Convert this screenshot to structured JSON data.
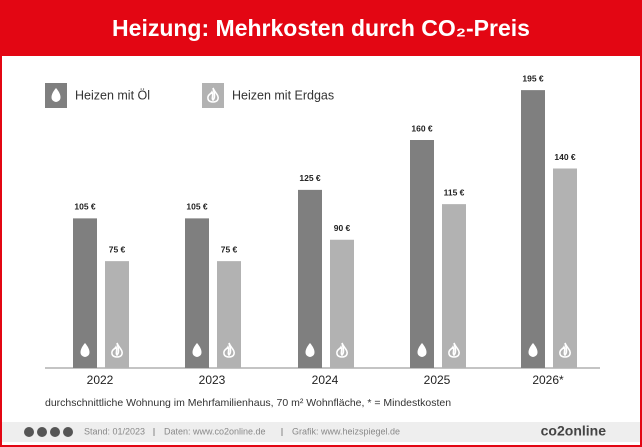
{
  "chart_data": {
    "type": "bar",
    "title": "Heizung: Mehrkosten durch CO₂-Preis",
    "categories": [
      "2022",
      "2023",
      "2024",
      "2025",
      "2026*"
    ],
    "series": [
      {
        "name": "Heizen mit Öl",
        "color": "#7f7f7f",
        "values": [
          105,
          105,
          125,
          160,
          195
        ],
        "value_labels": [
          "105 €",
          "105 €",
          "125 €",
          "160 €",
          "195 €"
        ]
      },
      {
        "name": "Heizen mit Erdgas",
        "color": "#b2b2b2",
        "values": [
          75,
          75,
          90,
          115,
          140
        ],
        "value_labels": [
          "75 €",
          "75 €",
          "90 €",
          "115 €",
          "140 €"
        ]
      }
    ],
    "note": "durchschnittliche Wohnung im Mehrfamilienhaus, 70 m² Wohnfläche, * = Mindestkosten",
    "footer": [
      "Stand: 01/2023",
      "Daten: www.co2online.de",
      "Grafik: www.heizspiegel.de"
    ],
    "logo": "co2online"
  }
}
